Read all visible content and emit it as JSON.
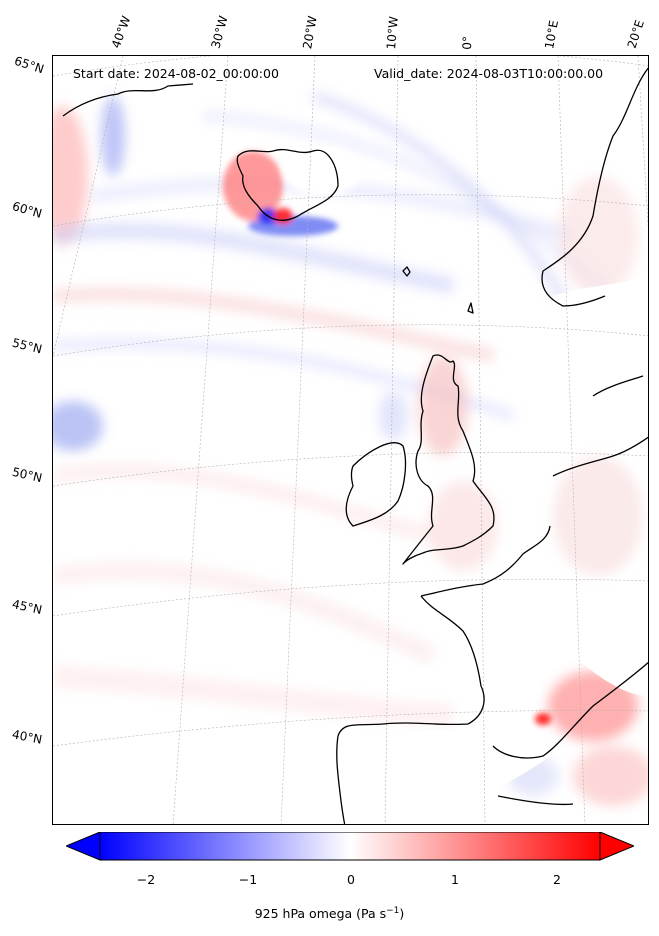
{
  "header": {
    "start_date": "Start date: 2024-08-02_00:00:00",
    "valid_date": "Valid_date: 2024-08-03T10:00:00.00"
  },
  "longitude_labels": [
    "40°W",
    "30°W",
    "20°W",
    "10°W",
    "0°",
    "10°E",
    "20°E"
  ],
  "latitude_labels": [
    "65°N",
    "60°N",
    "55°N",
    "50°N",
    "45°N",
    "40°N"
  ],
  "colorbar": {
    "ticks": [
      "−2",
      "−1",
      "0",
      "1",
      "2"
    ],
    "label": "925 hPa omega (Pa s",
    "label_exponent": "−1",
    "label_close": ")",
    "range": [
      -2.6,
      2.6
    ],
    "extend": "both",
    "colors": {
      "negative": "#0000ff",
      "zero": "#ffffff",
      "positive": "#ff0000"
    }
  },
  "map": {
    "region": "North Atlantic / Western Europe",
    "field": "925 hPa omega",
    "coastline_color": "#000000",
    "gridline_color": "#b0b0b0"
  }
}
